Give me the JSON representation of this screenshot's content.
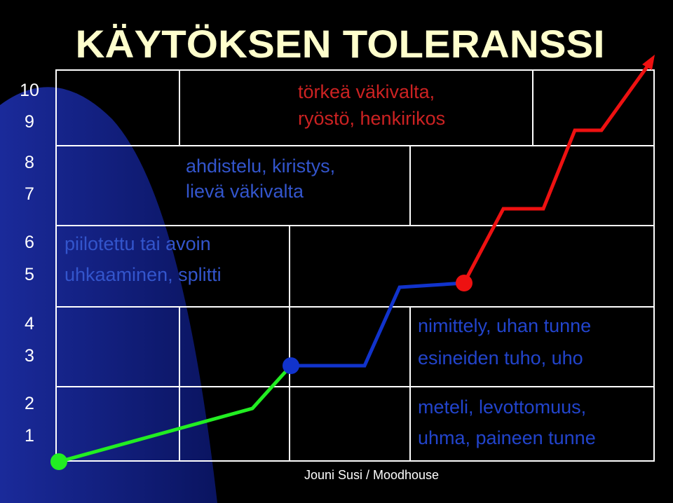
{
  "title": "KÄYTÖKSEN TOLERANSSI",
  "scale": [
    "10",
    "9",
    "8",
    "7",
    "6",
    "5",
    "4",
    "3",
    "2",
    "1"
  ],
  "levels": [
    {
      "lines": [
        "törkeä väkivalta,",
        "ryöstö, henkirikos"
      ]
    },
    {
      "lines": [
        "ahdistelu, kiristys,",
        "lievä väkivalta"
      ]
    },
    {
      "lines": [
        "piilotettu tai avoin",
        "uhkaaminen, splitti"
      ]
    },
    {
      "lines": [
        "nimittely, uhan tunne",
        "esineiden tuho, uho"
      ]
    },
    {
      "lines": [
        "meteli, levottomuus,",
        "uhma, paineen tunne"
      ]
    }
  ],
  "footer": "Jouni Susi / Moodhouse"
}
